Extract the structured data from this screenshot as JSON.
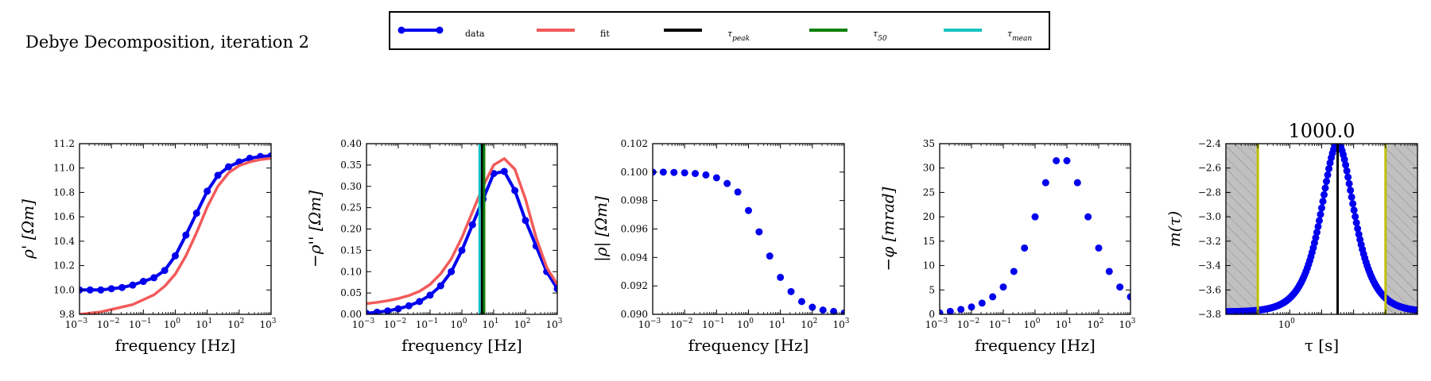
{
  "figure": {
    "title": "Debye Decomposition, iteration 2",
    "legend": {
      "entries": [
        {
          "key": "data",
          "label": "data",
          "kind": "line-marker",
          "color": "#0000ee"
        },
        {
          "key": "fit",
          "label": "fit",
          "kind": "line",
          "color": "#f25a5a"
        },
        {
          "key": "tau_peak",
          "label": "τ",
          "sub": "peak",
          "kind": "line",
          "color": "#000000"
        },
        {
          "key": "tau_50",
          "label": "τ",
          "sub": "50",
          "kind": "line",
          "color": "#0a800a"
        },
        {
          "key": "tau_mean",
          "label": "τ",
          "sub": "mean",
          "kind": "line",
          "color": "#19c3c3"
        }
      ]
    }
  },
  "chart_data": [
    {
      "id": "rho_real",
      "type": "line",
      "xscale": "log",
      "xlim": [
        0.001,
        1000
      ],
      "ylim": [
        9.8,
        11.2
      ],
      "yticks": [
        9.8,
        10.0,
        10.2,
        10.4,
        10.6,
        10.8,
        11.0,
        11.2
      ],
      "xlabel": "frequency [Hz]",
      "ylabel": "ρ' [Ωm]",
      "series": [
        {
          "name": "data",
          "style": "line-marker",
          "color": "#0000ee",
          "x": [
            0.001,
            0.00215,
            0.00464,
            0.01,
            0.0215,
            0.0464,
            0.1,
            0.215,
            0.464,
            1,
            2.15,
            4.64,
            10,
            21.5,
            46.4,
            100,
            215,
            464,
            1000
          ],
          "y": [
            10.0,
            10.0,
            10.0,
            10.01,
            10.02,
            10.04,
            10.07,
            10.1,
            10.16,
            10.28,
            10.45,
            10.63,
            10.81,
            10.94,
            11.01,
            11.05,
            11.08,
            11.095,
            11.1
          ]
        },
        {
          "name": "fit",
          "style": "line",
          "color": "#f25a5a",
          "x": [
            0.001,
            0.00215,
            0.00464,
            0.01,
            0.0215,
            0.0464,
            0.1,
            0.215,
            0.464,
            1,
            2.15,
            4.64,
            10,
            21.5,
            46.4,
            100,
            215,
            464,
            1000
          ],
          "y": [
            9.8,
            9.81,
            9.82,
            9.84,
            9.86,
            9.88,
            9.92,
            9.96,
            10.03,
            10.13,
            10.28,
            10.47,
            10.68,
            10.85,
            10.96,
            11.02,
            11.05,
            11.07,
            11.08
          ]
        }
      ]
    },
    {
      "id": "rho_imag",
      "type": "line",
      "xscale": "log",
      "xlim": [
        0.001,
        1000
      ],
      "ylim": [
        0,
        0.4
      ],
      "yticks": [
        0.0,
        0.05,
        0.1,
        0.15,
        0.2,
        0.25,
        0.3,
        0.35,
        0.4
      ],
      "xlabel": "frequency [Hz]",
      "ylabel": "−ρ'' [Ωm]",
      "vlines": [
        {
          "name": "tau_mean",
          "x": 3.6,
          "color": "#19c3c3"
        },
        {
          "name": "tau_peak",
          "x": 4.3,
          "color": "#000000"
        },
        {
          "name": "tau_50",
          "x": 5.0,
          "color": "#0a800a"
        }
      ],
      "series": [
        {
          "name": "data",
          "style": "line-marker",
          "color": "#0000ee",
          "x": [
            0.001,
            0.00215,
            0.00464,
            0.01,
            0.0215,
            0.0464,
            0.1,
            0.215,
            0.464,
            1,
            2.15,
            4.64,
            10,
            21.5,
            46.4,
            100,
            215,
            464,
            1000
          ],
          "y": [
            0.002,
            0.005,
            0.008,
            0.013,
            0.02,
            0.03,
            0.045,
            0.067,
            0.1,
            0.15,
            0.21,
            0.27,
            0.33,
            0.335,
            0.29,
            0.22,
            0.16,
            0.1,
            0.06
          ]
        },
        {
          "name": "fit",
          "style": "line",
          "color": "#f25a5a",
          "x": [
            0.001,
            0.00215,
            0.00464,
            0.01,
            0.0215,
            0.0464,
            0.1,
            0.215,
            0.464,
            1,
            2.15,
            4.64,
            10,
            21.5,
            46.4,
            100,
            215,
            464,
            1000
          ],
          "y": [
            0.025,
            0.028,
            0.032,
            0.037,
            0.044,
            0.054,
            0.07,
            0.095,
            0.13,
            0.18,
            0.24,
            0.3,
            0.35,
            0.365,
            0.34,
            0.27,
            0.18,
            0.11,
            0.07
          ]
        }
      ]
    },
    {
      "id": "rho_abs",
      "type": "scatter",
      "xscale": "log",
      "xlim": [
        0.001,
        1000
      ],
      "ylim": [
        0.09,
        0.102
      ],
      "yticks": [
        0.09,
        0.092,
        0.094,
        0.096,
        0.098,
        0.1,
        0.102
      ],
      "xlabel": "frequency [Hz]",
      "ylabel": "|ρ| [Ωm]",
      "series": [
        {
          "name": "data",
          "style": "marker",
          "color": "#0000ee",
          "x": [
            0.001,
            0.00215,
            0.00464,
            0.01,
            0.0215,
            0.0464,
            0.1,
            0.215,
            0.464,
            1,
            2.15,
            4.64,
            10,
            21.5,
            46.4,
            100,
            215,
            464,
            1000
          ],
          "y": [
            0.1,
            0.1,
            0.09998,
            0.09995,
            0.0999,
            0.0998,
            0.0996,
            0.0992,
            0.0986,
            0.0973,
            0.0958,
            0.0941,
            0.0926,
            0.0916,
            0.0909,
            0.0905,
            0.0903,
            0.0902,
            0.0901
          ]
        }
      ]
    },
    {
      "id": "phase",
      "type": "scatter",
      "xscale": "log",
      "xlim": [
        0.001,
        1000
      ],
      "ylim": [
        0,
        35
      ],
      "yticks": [
        0,
        5,
        10,
        15,
        20,
        25,
        30,
        35
      ],
      "xlabel": "frequency [Hz]",
      "ylabel": "−φ [mrad]",
      "series": [
        {
          "name": "data",
          "style": "marker",
          "color": "#0000ee",
          "x": [
            0.001,
            0.00215,
            0.00464,
            0.01,
            0.0215,
            0.0464,
            0.1,
            0.215,
            0.464,
            1,
            2.15,
            4.64,
            10,
            21.5,
            46.4,
            100,
            215,
            464,
            1000
          ],
          "y": [
            0.3,
            0.6,
            1.0,
            1.5,
            2.3,
            3.6,
            5.6,
            8.8,
            13.6,
            20,
            27,
            31.5,
            31.5,
            27,
            20,
            13.6,
            8.8,
            5.6,
            3.6
          ]
        }
      ]
    },
    {
      "id": "tau_dist",
      "type": "line",
      "title": "1000.0",
      "xscale": "log",
      "xlim": [
        0.01,
        10000
      ],
      "xticks": [
        1
      ],
      "ylim": [
        -3.8,
        -2.4
      ],
      "yticks": [
        -3.8,
        -3.6,
        -3.4,
        -3.2,
        -3.0,
        -2.8,
        -2.6,
        -2.4
      ],
      "xlabel": "τ [s]",
      "ylabel": "m(τ)",
      "shaded": [
        {
          "from": 0.01,
          "to": 0.1
        },
        {
          "from": 1000,
          "to": 10000
        }
      ],
      "vlines": [
        {
          "name": "tau_min",
          "x": 0.1,
          "color": "#bfbf00"
        },
        {
          "name": "tau_peak",
          "x": 31.6,
          "color": "#000000"
        },
        {
          "name": "tau_max",
          "x": 1000,
          "color": "#bfbf00"
        }
      ],
      "series": [
        {
          "name": "data",
          "style": "dense-marker",
          "color": "#0000ee",
          "center": 31.6,
          "peak": -2.4,
          "base": -3.78,
          "width_decades": 0.8
        }
      ]
    }
  ]
}
